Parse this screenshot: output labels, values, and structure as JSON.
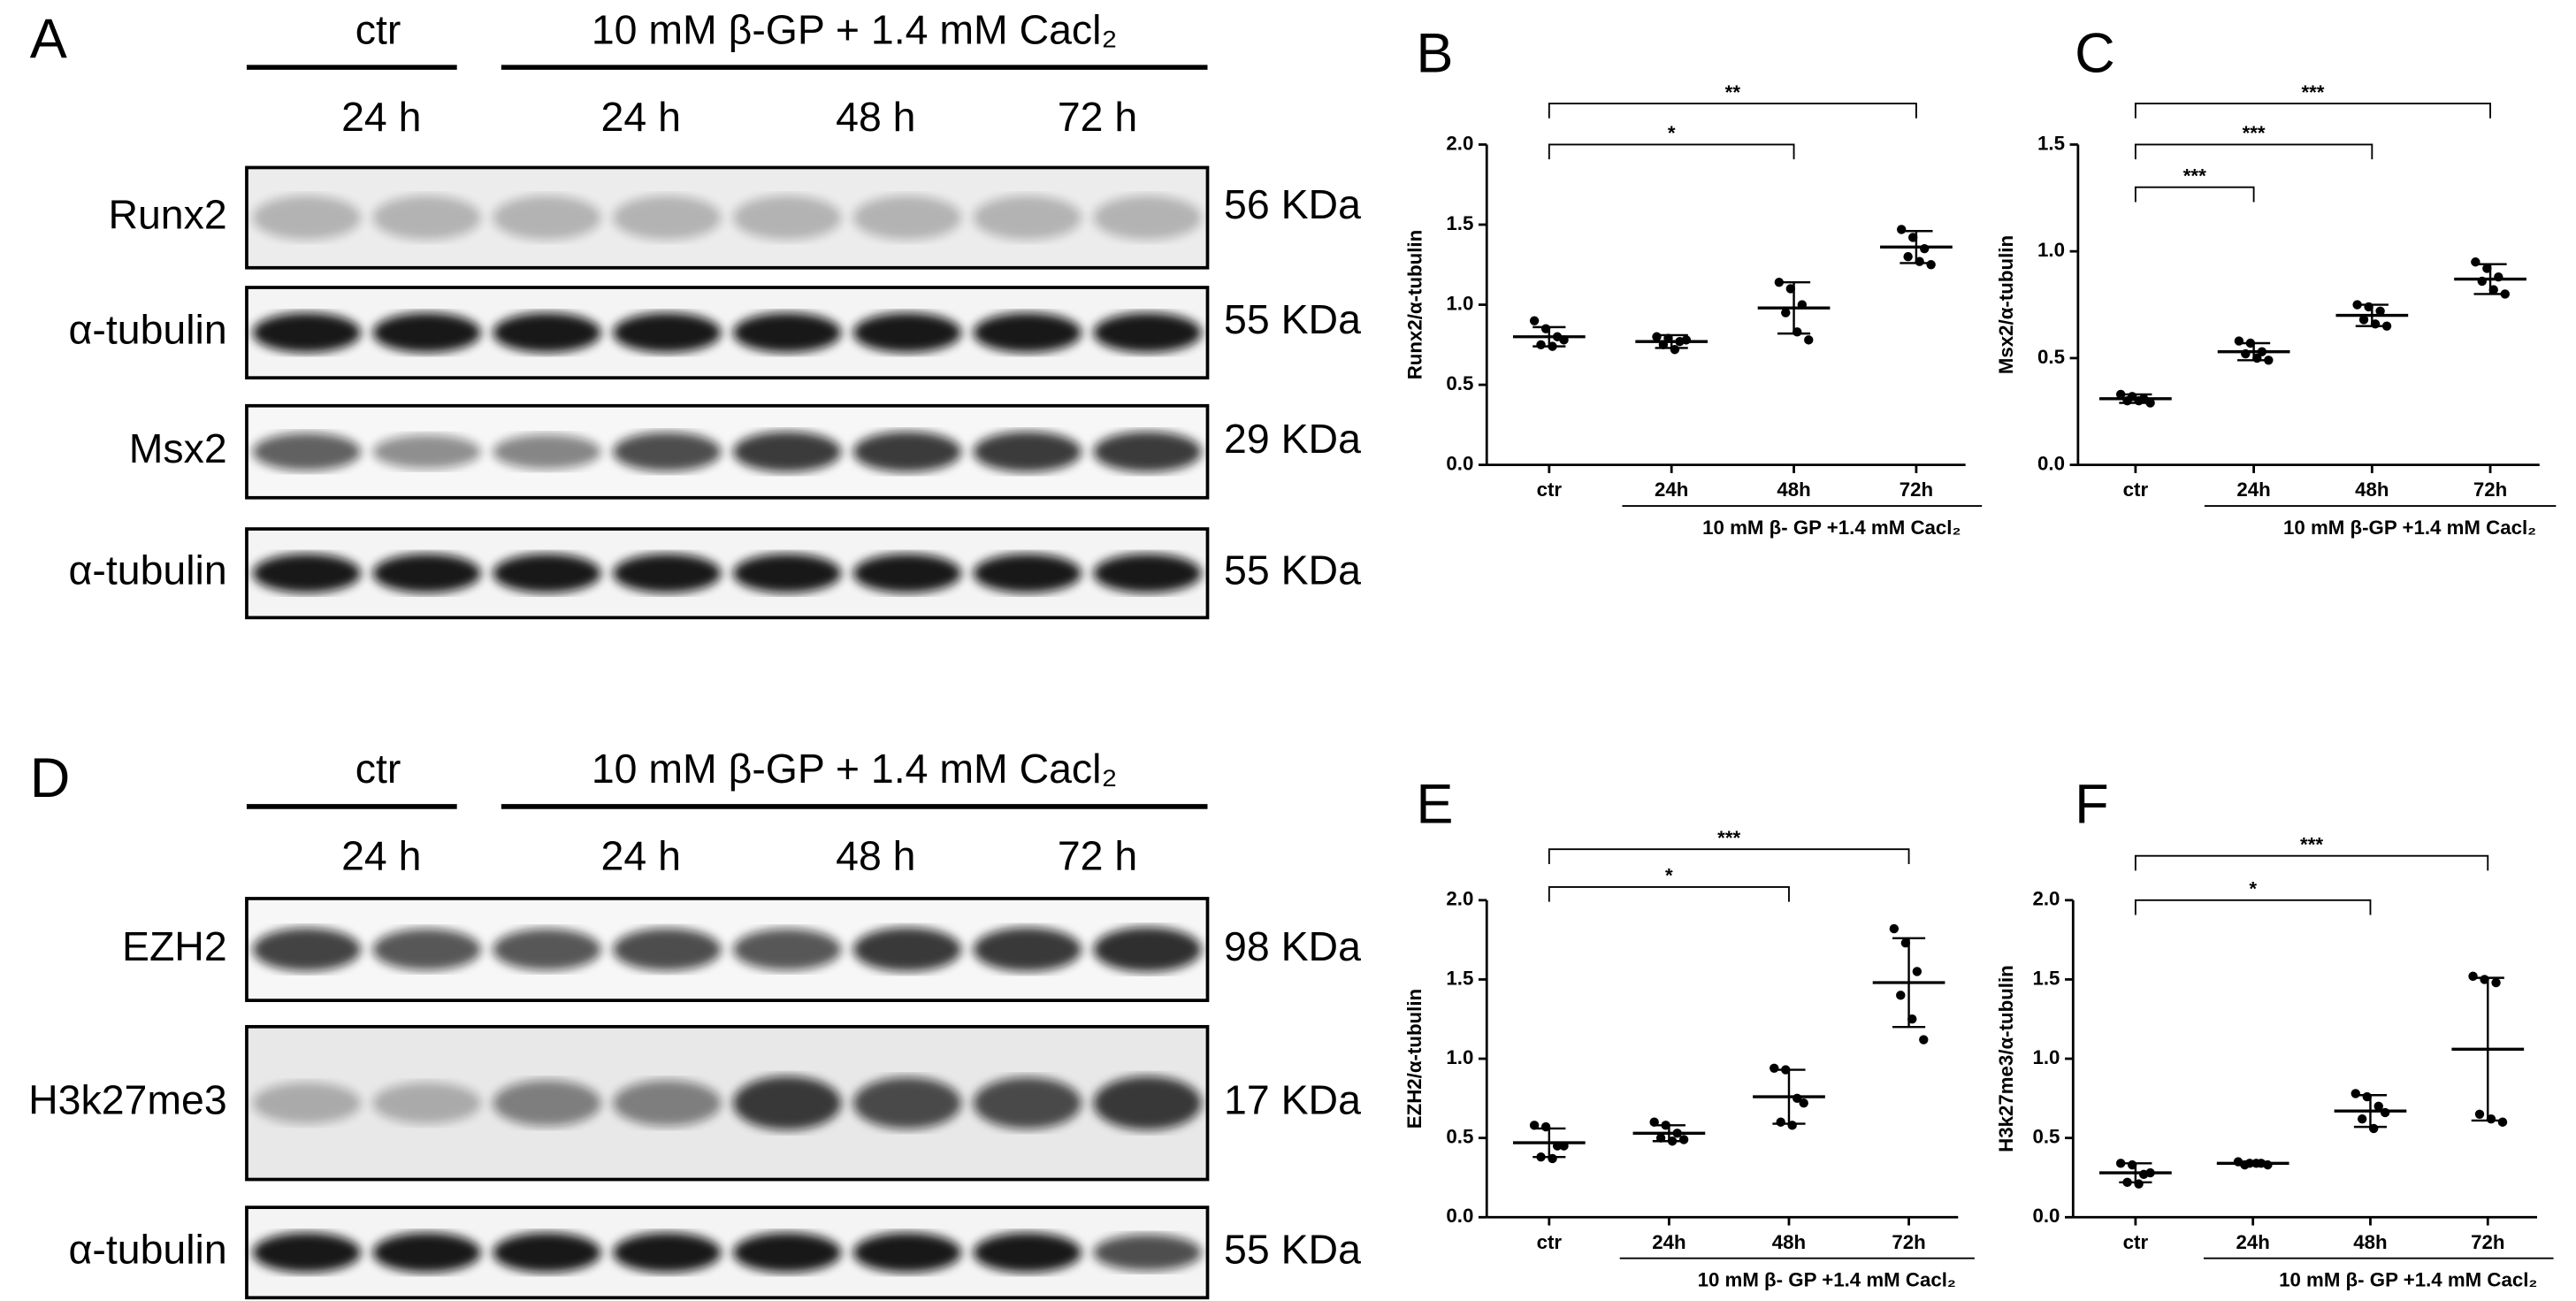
{
  "blots": [
    {
      "panel": "A",
      "control": "ctr",
      "treatment": "10 mM β-GP + 1.4 mM Cacl₂",
      "times": [
        "24 h",
        "24 h",
        "48 h",
        "72 h"
      ],
      "rows": [
        {
          "protein": "Runx2",
          "size": "56 KDa"
        },
        {
          "protein": "α-tubulin",
          "size": "55 KDa"
        },
        {
          "protein": "Msx2",
          "size": "29 KDa"
        },
        {
          "protein": "α-tubulin",
          "size": "55 KDa"
        }
      ]
    },
    {
      "panel": "D",
      "control": "ctr",
      "treatment": "10 mM β-GP + 1.4 mM Cacl₂",
      "times": [
        "24 h",
        "24 h",
        "48 h",
        "72 h"
      ],
      "rows": [
        {
          "protein": "EZH2",
          "size": "98 KDa"
        },
        {
          "protein": "H3k27me3",
          "size": "17 KDa"
        },
        {
          "protein": "α-tubulin",
          "size": "55 KDa"
        }
      ]
    }
  ],
  "chart_data": [
    {
      "type": "dot",
      "panel": "B",
      "ylabel": "Runx2/α-tubulin",
      "group_label": "10 mM  β- GP +1.4 mM Cacl₂",
      "color": "#000000",
      "categories": [
        "ctr",
        "24h",
        "48h",
        "72h"
      ],
      "points": [
        [
          0.9,
          0.85,
          0.8,
          0.75,
          0.74,
          0.78
        ],
        [
          0.8,
          0.79,
          0.77,
          0.75,
          0.72,
          0.78
        ],
        [
          1.14,
          1.1,
          1.0,
          0.95,
          0.83,
          0.78
        ],
        [
          1.47,
          1.42,
          1.35,
          1.3,
          1.27,
          1.25
        ]
      ],
      "means": [
        0.8,
        0.77,
        0.98,
        1.36
      ],
      "errors": [
        0.06,
        0.04,
        0.16,
        0.1
      ],
      "ylim": [
        0,
        2
      ],
      "yticks": [
        {
          "value": 0,
          "label": "0.0"
        },
        0.5,
        {
          "value": 1,
          "label": "1.0"
        },
        1.5,
        {
          "value": 2,
          "label": "2.0"
        }
      ],
      "annotations": [
        {
          "from": 0,
          "to": 2,
          "text": "*"
        },
        {
          "from": 0,
          "to": 3,
          "text": "**"
        }
      ]
    },
    {
      "type": "dot",
      "panel": "C",
      "ylabel": "Msx2/α-tubulin",
      "group_label": "10 mM  β-GP +1.4 mM Cacl₂",
      "color": "#000000",
      "categories": [
        "ctr",
        "24h",
        "48h",
        "72h"
      ],
      "points": [
        [
          0.33,
          0.32,
          0.31,
          0.3,
          0.3,
          0.29
        ],
        [
          0.58,
          0.57,
          0.53,
          0.52,
          0.5,
          0.49
        ],
        [
          0.75,
          0.74,
          0.72,
          0.68,
          0.66,
          0.65
        ],
        [
          0.95,
          0.92,
          0.88,
          0.86,
          0.82,
          0.8
        ]
      ],
      "means": [
        0.31,
        0.53,
        0.7,
        0.87
      ],
      "errors": [
        0.02,
        0.04,
        0.05,
        0.07
      ],
      "ylim": [
        0,
        1.5
      ],
      "yticks": [
        {
          "value": 0,
          "label": "0.0"
        },
        0.5,
        {
          "value": 1,
          "label": "1.0"
        },
        1.5
      ],
      "annotations": [
        {
          "from": 0,
          "to": 1,
          "text": "***"
        },
        {
          "from": 0,
          "to": 2,
          "text": "***"
        },
        {
          "from": 0,
          "to": 3,
          "text": "***"
        }
      ]
    },
    {
      "type": "dot",
      "panel": "E",
      "ylabel": "EZH2/α-tubulin",
      "group_label": "10 mM  β- GP +1.4 mM Cacl₂",
      "color": "#000000",
      "categories": [
        "ctr",
        "24h",
        "48h",
        "72h"
      ],
      "points": [
        [
          0.58,
          0.57,
          0.45,
          0.38,
          0.37,
          0.45
        ],
        [
          0.6,
          0.58,
          0.53,
          0.5,
          0.48,
          0.49
        ],
        [
          0.94,
          0.93,
          0.75,
          0.6,
          0.58,
          0.72
        ],
        [
          1.82,
          1.73,
          1.55,
          1.4,
          1.25,
          1.12
        ]
      ],
      "means": [
        0.47,
        0.53,
        0.76,
        1.48
      ],
      "errors": [
        0.09,
        0.05,
        0.17,
        0.28
      ],
      "ylim": [
        0,
        2
      ],
      "yticks": [
        {
          "value": 0,
          "label": "0.0"
        },
        0.5,
        {
          "value": 1,
          "label": "1.0"
        },
        1.5,
        {
          "value": 2,
          "label": "2.0"
        }
      ],
      "annotations": [
        {
          "from": 0,
          "to": 2,
          "text": "*"
        },
        {
          "from": 0,
          "to": 3,
          "text": "***"
        }
      ]
    },
    {
      "type": "dot",
      "panel": "F",
      "ylabel": "H3k27me3/α-tubulin",
      "group_label": "10 mM  β- GP +1.4 mM Cacl₂",
      "color": "#000000",
      "categories": [
        "ctr",
        "24h",
        "48h",
        "72h"
      ],
      "points": [
        [
          0.34,
          0.33,
          0.27,
          0.22,
          0.21,
          0.28
        ],
        [
          0.35,
          0.34,
          0.34,
          0.33,
          0.34,
          0.33
        ],
        [
          0.78,
          0.76,
          0.7,
          0.62,
          0.56,
          0.66
        ],
        [
          1.52,
          1.5,
          1.48,
          0.65,
          0.62,
          0.6
        ]
      ],
      "means": [
        0.28,
        0.34,
        0.67,
        1.06
      ],
      "errors": [
        0.06,
        0.01,
        0.1,
        0.45
      ],
      "ylim": [
        0,
        2
      ],
      "yticks": [
        {
          "value": 0,
          "label": "0.0"
        },
        0.5,
        {
          "value": 1,
          "label": "1.0"
        },
        1.5,
        {
          "value": 2,
          "label": "2.0"
        }
      ],
      "annotations": [
        {
          "from": 0,
          "to": 2,
          "text": "*"
        },
        {
          "from": 0,
          "to": 3,
          "text": "***"
        }
      ]
    }
  ]
}
